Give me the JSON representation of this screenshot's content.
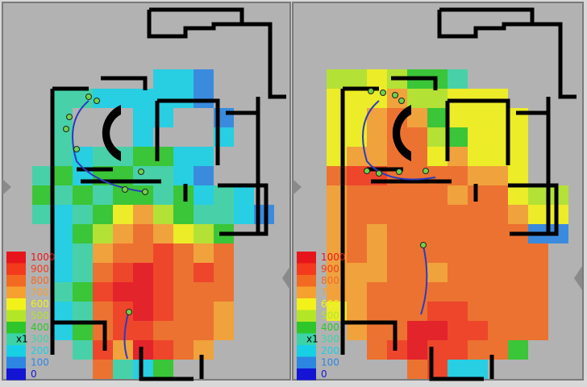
{
  "legend": {
    "levels": [
      1000,
      900,
      800,
      700,
      600,
      500,
      400,
      300,
      200,
      100,
      0
    ],
    "colors": [
      "#e8141c",
      "#f43a1c",
      "#f26a22",
      "#f6a030",
      "#f2f21a",
      "#b4e628",
      "#2ec62a",
      "#3cd4a6",
      "#18d0e6",
      "#2c86e2",
      "#1414d4"
    ],
    "scale_label": "x1"
  },
  "panels": [
    {
      "heatmap": [
        [
          null,
          null,
          null,
          null,
          null,
          null,
          200,
          200,
          100,
          null,
          null,
          null
        ],
        [
          null,
          300,
          300,
          200,
          200,
          200,
          200,
          200,
          100,
          null,
          null,
          null
        ],
        [
          null,
          300,
          null,
          null,
          null,
          200,
          200,
          null,
          null,
          100,
          null,
          null
        ],
        [
          null,
          300,
          null,
          null,
          null,
          200,
          null,
          null,
          null,
          200,
          null,
          null
        ],
        [
          null,
          300,
          200,
          300,
          300,
          400,
          400,
          200,
          200,
          null,
          null,
          null
        ],
        [
          300,
          400,
          200,
          400,
          400,
          300,
          300,
          200,
          100,
          null,
          null,
          null
        ],
        [
          400,
          300,
          400,
          300,
          400,
          400,
          300,
          400,
          200,
          300,
          200,
          null
        ],
        [
          300,
          200,
          300,
          400,
          600,
          700,
          500,
          400,
          300,
          300,
          200,
          100
        ],
        [
          null,
          200,
          400,
          500,
          700,
          800,
          700,
          600,
          500,
          400,
          null,
          null
        ],
        [
          null,
          200,
          300,
          700,
          800,
          800,
          900,
          800,
          700,
          800,
          null,
          null
        ],
        [
          null,
          200,
          300,
          800,
          900,
          1000,
          900,
          800,
          900,
          800,
          null,
          null
        ],
        [
          null,
          300,
          400,
          900,
          1000,
          1000,
          900,
          800,
          800,
          800,
          null,
          null
        ],
        [
          null,
          200,
          300,
          800,
          900,
          1000,
          900,
          800,
          800,
          700,
          null,
          null
        ],
        [
          null,
          200,
          400,
          800,
          900,
          900,
          800,
          800,
          800,
          700,
          null,
          null
        ],
        [
          null,
          null,
          300,
          900,
          700,
          1000,
          900,
          800,
          700,
          null,
          null,
          null
        ],
        [
          null,
          null,
          null,
          800,
          300,
          200,
          400,
          null,
          null,
          null,
          null,
          null
        ]
      ]
    },
    {
      "heatmap": [
        [
          500,
          500,
          600,
          500,
          400,
          400,
          300,
          null,
          null,
          null,
          null,
          null
        ],
        [
          600,
          600,
          600,
          700,
          500,
          500,
          600,
          600,
          600,
          null,
          null,
          null
        ],
        [
          600,
          600,
          700,
          800,
          700,
          400,
          600,
          600,
          600,
          600,
          null,
          null
        ],
        [
          600,
          600,
          700,
          800,
          800,
          500,
          400,
          600,
          600,
          600,
          null,
          null
        ],
        [
          600,
          700,
          700,
          800,
          800,
          600,
          700,
          600,
          600,
          600,
          null,
          null
        ],
        [
          800,
          900,
          900,
          800,
          800,
          800,
          800,
          700,
          700,
          600,
          null,
          null
        ],
        [
          700,
          800,
          800,
          800,
          800,
          800,
          700,
          800,
          800,
          600,
          500,
          500
        ],
        [
          700,
          800,
          800,
          800,
          800,
          800,
          800,
          800,
          800,
          700,
          600,
          600
        ],
        [
          700,
          800,
          700,
          800,
          800,
          800,
          800,
          800,
          800,
          800,
          100,
          100
        ],
        [
          700,
          800,
          700,
          800,
          800,
          800,
          800,
          800,
          800,
          800,
          800,
          null
        ],
        [
          700,
          700,
          700,
          800,
          800,
          700,
          800,
          800,
          800,
          800,
          800,
          null
        ],
        [
          700,
          700,
          800,
          800,
          800,
          800,
          800,
          800,
          800,
          800,
          800,
          null
        ],
        [
          600,
          700,
          800,
          800,
          800,
          900,
          900,
          800,
          800,
          800,
          800,
          null
        ],
        [
          null,
          700,
          800,
          800,
          1000,
          1000,
          900,
          900,
          800,
          800,
          800,
          null
        ],
        [
          null,
          null,
          800,
          900,
          1000,
          900,
          900,
          800,
          800,
          400,
          null,
          null
        ],
        [
          null,
          null,
          null,
          null,
          800,
          900,
          200,
          200,
          null,
          null,
          null,
          null
        ]
      ]
    }
  ]
}
